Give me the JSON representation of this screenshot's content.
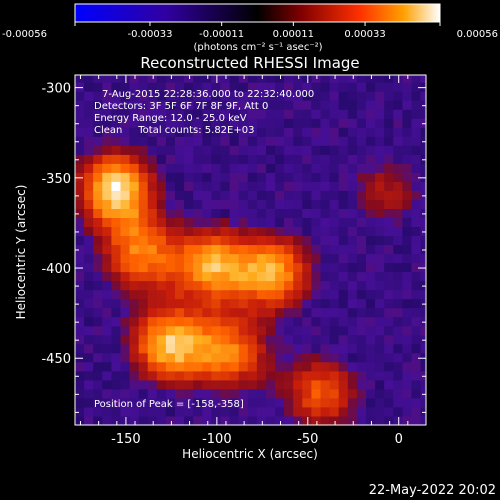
{
  "colorbar": {
    "tick_labels": [
      "-0.00056",
      "-0.00033",
      "-0.00011",
      "0.00011",
      "0.00033",
      "0.00056"
    ],
    "units_label": "(photons cm⁻² s⁻¹ asec⁻²)",
    "colors": [
      "#0000ff",
      "#3000a0",
      "#000000",
      "#800000",
      "#ff3000",
      "#ffa000",
      "#ffffff"
    ]
  },
  "footer_date": "22-May-2022 20:02",
  "chart_data": {
    "type": "heatmap",
    "title": "Reconstructed RHESSI Image",
    "xlabel": "Heliocentric X (arcsec)",
    "ylabel": "Heliocentric Y (arcsec)",
    "xlim": [
      -178,
      15
    ],
    "ylim": [
      -487,
      -293
    ],
    "x_ticks": [
      "-150",
      "-100",
      "-50",
      "0"
    ],
    "x_tick_values": [
      -150,
      -100,
      -50,
      0
    ],
    "y_ticks": [
      "-300",
      "-350",
      "-400",
      "-450"
    ],
    "y_tick_values": [
      -300,
      -350,
      -400,
      -450
    ],
    "info_lines": [
      "7-Aug-2015 22:28:36.000 to 22:32:40.000",
      "Detectors: 3F 5F 6F 7F 8F 9F, Att 0",
      "Energy Range: 12.0 - 25.0 keV",
      "Clean     Total counts: 5.82E+03"
    ],
    "peak_annotation": "Position of Peak = [-158,-358]",
    "colorbar_range": [
      -0.00056,
      0.00056
    ],
    "flux_units": "photons cm^-2 s^-1 asec^-2",
    "sources": [
      {
        "x": -158,
        "y": -358,
        "flux": 0.00056
      },
      {
        "x": -145,
        "y": -395,
        "flux": 0.0004
      },
      {
        "x": -105,
        "y": -400,
        "flux": 0.00045
      },
      {
        "x": -70,
        "y": -405,
        "flux": 0.00046
      },
      {
        "x": -130,
        "y": -445,
        "flux": 0.0005
      },
      {
        "x": -95,
        "y": -450,
        "flux": 0.0004
      },
      {
        "x": -45,
        "y": -472,
        "flux": 0.00038
      },
      {
        "x": -10,
        "y": -360,
        "flux": 0.00025
      }
    ]
  }
}
